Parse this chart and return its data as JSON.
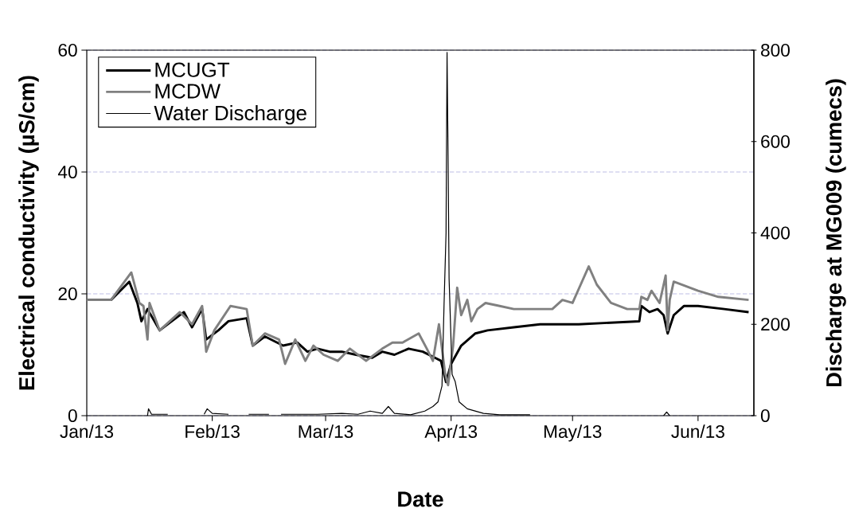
{
  "chart_data": {
    "type": "line",
    "xlabel": "Date",
    "ylabel": "Electrical conductivity (µS/cm)",
    "y2label": "Discharge at MG009 (cumecs)",
    "xlim": [
      "2013-01-01",
      "2013-06-14T19:00"
    ],
    "xticks": [
      {
        "value": "2013-01-01",
        "label": "Jan/13"
      },
      {
        "value": "2013-02-01",
        "label": "Feb/13"
      },
      {
        "value": "2013-03-01",
        "label": "Mar/13"
      },
      {
        "value": "2013-04-01",
        "label": "Apr/13"
      },
      {
        "value": "2013-05-01",
        "label": "May/13"
      },
      {
        "value": "2013-06-01",
        "label": "Jun/13"
      }
    ],
    "ylim": [
      0,
      60
    ],
    "yticks": [
      0,
      20,
      40,
      60
    ],
    "y2lim": [
      0,
      800
    ],
    "y2ticks": [
      0,
      200,
      400,
      600,
      800
    ],
    "grid": "y",
    "legend": "top left",
    "line_style": "solid",
    "series": [
      {
        "name": "MCUGT",
        "color": "#000000",
        "x": [
          "2013-01-01",
          "2013-01-07",
          "2013-01-11T12:00",
          "2013-01-13T12:00",
          "2013-01-14T12:00",
          "2013-01-16",
          "2013-01-19",
          "2013-01-22",
          "2013-01-25",
          "2013-01-27",
          "2013-01-29T12:00",
          "2013-01-30T12:00",
          "2013-02-02T12:00",
          "2013-02-05",
          "2013-02-09T12:00",
          "2013-02-11",
          "2013-02-14",
          "2013-02-18T12:00",
          "2013-02-22",
          "2013-02-24T12:00",
          "2013-02-27",
          "2013-03-02",
          "2013-03-05",
          "2013-03-08T12:00",
          "2013-03-12T12:00",
          "2013-03-15",
          "2013-03-18",
          "2013-03-21T12:00",
          "2013-03-25",
          "2013-03-28",
          "2013-03-29T12:00",
          "2013-03-30T18:00",
          "2013-04-01",
          "2013-04-03T12:00",
          "2013-04-07",
          "2013-04-10",
          "2013-04-16T12:00",
          "2013-04-23",
          "2013-05-02T12:00",
          "2013-05-17T12:00",
          "2013-05-18",
          "2013-05-20",
          "2013-05-22",
          "2013-05-23T12:00",
          "2013-05-24T12:00",
          "2013-05-26",
          "2013-05-28T12:00",
          "2013-06-01",
          "2013-06-07T12:00",
          "2013-06-13T12:00"
        ],
        "values": [
          19,
          19,
          22,
          18.5,
          15.5,
          17.5,
          14,
          15.5,
          17,
          14.5,
          17.5,
          12.5,
          14,
          15.5,
          16,
          11.5,
          13,
          11.5,
          12,
          10.5,
          11,
          10.5,
          10.5,
          10,
          9.5,
          10.5,
          10,
          11,
          10.5,
          9.5,
          9,
          5.5,
          8.5,
          11.5,
          13.5,
          14,
          14.5,
          15,
          15,
          15.5,
          18,
          17,
          17.5,
          16.5,
          13.5,
          16.5,
          18,
          18,
          17.5,
          17
        ]
      },
      {
        "name": "MCDW",
        "color": "#808080",
        "x": [
          "2013-01-01",
          "2013-01-07",
          "2013-01-12",
          "2013-01-14",
          "2013-01-15",
          "2013-01-16",
          "2013-01-16T12:00",
          "2013-01-19",
          "2013-01-24",
          "2013-01-27",
          "2013-01-29T12:00",
          "2013-01-30T12:00",
          "2013-02-01T12:00",
          "2013-02-05T12:00",
          "2013-02-09T12:00",
          "2013-02-11",
          "2013-02-14",
          "2013-02-17T12:00",
          "2013-02-19",
          "2013-02-21T12:00",
          "2013-02-24",
          "2013-02-26",
          "2013-02-28T12:00",
          "2013-03-04",
          "2013-03-07",
          "2013-03-11",
          "2013-03-15",
          "2013-03-17T12:00",
          "2013-03-20",
          "2013-03-24",
          "2013-03-26",
          "2013-03-27T12:00",
          "2013-03-29",
          "2013-03-30T12:00",
          "2013-03-31T06:00",
          "2013-04-01T12:00",
          "2013-04-02T12:00",
          "2013-04-03T12:00",
          "2013-04-05",
          "2013-04-06",
          "2013-04-07T12:00",
          "2013-04-09T12:00",
          "2013-04-13",
          "2013-04-16T12:00",
          "2013-04-23",
          "2013-04-26",
          "2013-04-28T12:00",
          "2013-05-01",
          "2013-05-03",
          "2013-05-05",
          "2013-05-07",
          "2013-05-10T12:00",
          "2013-05-14T12:00",
          "2013-05-17T12:00",
          "2013-05-18",
          "2013-05-19T12:00",
          "2013-05-20T12:00",
          "2013-05-22T12:00",
          "2013-05-24",
          "2013-05-24T12:00",
          "2013-05-25",
          "2013-05-26",
          "2013-06-01",
          "2013-06-06",
          "2013-06-13T12:00"
        ],
        "values": [
          19,
          19,
          23.5,
          18.5,
          18,
          12.5,
          18.5,
          14,
          17,
          15,
          18,
          10.5,
          14,
          18,
          17.5,
          11.5,
          13.5,
          12.5,
          8.5,
          12.5,
          9,
          11.5,
          10,
          9,
          11,
          9,
          11,
          12,
          12,
          13.5,
          11,
          9,
          15,
          7,
          5,
          11.5,
          21,
          16.5,
          19,
          15.5,
          17.5,
          18.5,
          18,
          17.5,
          17.5,
          17.5,
          19,
          18.5,
          21.5,
          24.5,
          21.5,
          18.5,
          17.5,
          17.5,
          19.5,
          19,
          20.5,
          18.5,
          23,
          14,
          19,
          22,
          20.5,
          19.5,
          19
        ]
      },
      {
        "name": "Water Discharge",
        "color": "#000000",
        "axis": "y2",
        "x": [
          "2013-01-16",
          "2013-01-16T06:00",
          "2013-01-17",
          "2013-01-21",
          "2013-01-23",
          "2013-01-30",
          "2013-01-30T18:00",
          "2013-02-01",
          "2013-02-05",
          "2013-02-07",
          "2013-02-10",
          "2013-02-15",
          "2013-02-16T12:00",
          "2013-02-18",
          "2013-02-27",
          "2013-03-05",
          "2013-03-09",
          "2013-03-12",
          "2013-03-15",
          "2013-03-16T12:00",
          "2013-03-18",
          "2013-03-22",
          "2013-03-25T12:00",
          "2013-03-27T12:00",
          "2013-03-28T18:00",
          "2013-03-29T18:00",
          "2013-03-30T06:00",
          "2013-03-30T18:00",
          "2013-03-31",
          "2013-03-31T06:00",
          "2013-03-31T12:00",
          "2013-04-01T06:00",
          "2013-04-02",
          "2013-04-03",
          "2013-04-05",
          "2013-04-09",
          "2013-04-13",
          "2013-04-20T12:00",
          "2013-04-22",
          "2013-05-23T12:00",
          "2013-05-24T06:00",
          "2013-05-25"
        ],
        "values": [
          0,
          15,
          3,
          3,
          null,
          3,
          15,
          5,
          3,
          null,
          3,
          3,
          null,
          3,
          3,
          5,
          3,
          10,
          5,
          20,
          5,
          2,
          10,
          20,
          30,
          65,
          240,
          400,
          795,
          570,
          300,
          90,
          75,
          30,
          15,
          5,
          2,
          2,
          null,
          0,
          8,
          0
        ]
      }
    ]
  }
}
